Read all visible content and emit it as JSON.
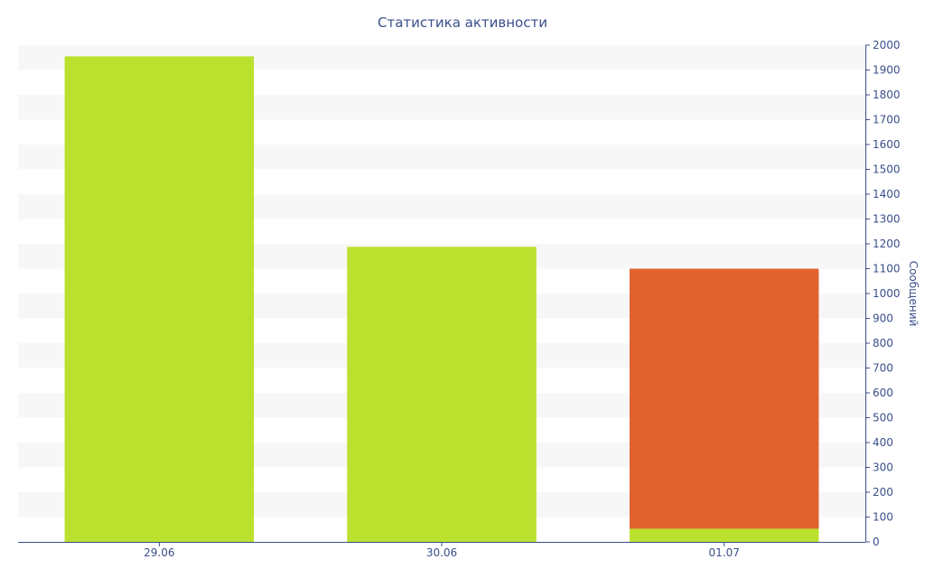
{
  "chart_data": {
    "type": "bar",
    "title": "Статистика активности",
    "xlabel": "",
    "ylabel": "Сообщений",
    "categories": [
      "29.06",
      "30.06",
      "01.07"
    ],
    "series": [
      {
        "values": [
          1955,
          1188,
          53
        ],
        "color": "#bbe12e"
      },
      {
        "values": [
          0,
          0,
          1047
        ],
        "color": "#e0632e"
      }
    ],
    "stacked": true,
    "ylim": [
      0,
      2000
    ],
    "y_ticks": [
      0,
      100,
      200,
      300,
      400,
      500,
      600,
      700,
      800,
      900,
      1000,
      1100,
      1200,
      1300,
      1400,
      1500,
      1600,
      1700,
      1800,
      1900,
      2000
    ],
    "y_axis_side": "right",
    "grid": "alternating-bands",
    "legend": "none"
  },
  "colors": {
    "text": "#3a4f8c",
    "axis": "#3a4f8c",
    "band": "#f7f7f7"
  }
}
